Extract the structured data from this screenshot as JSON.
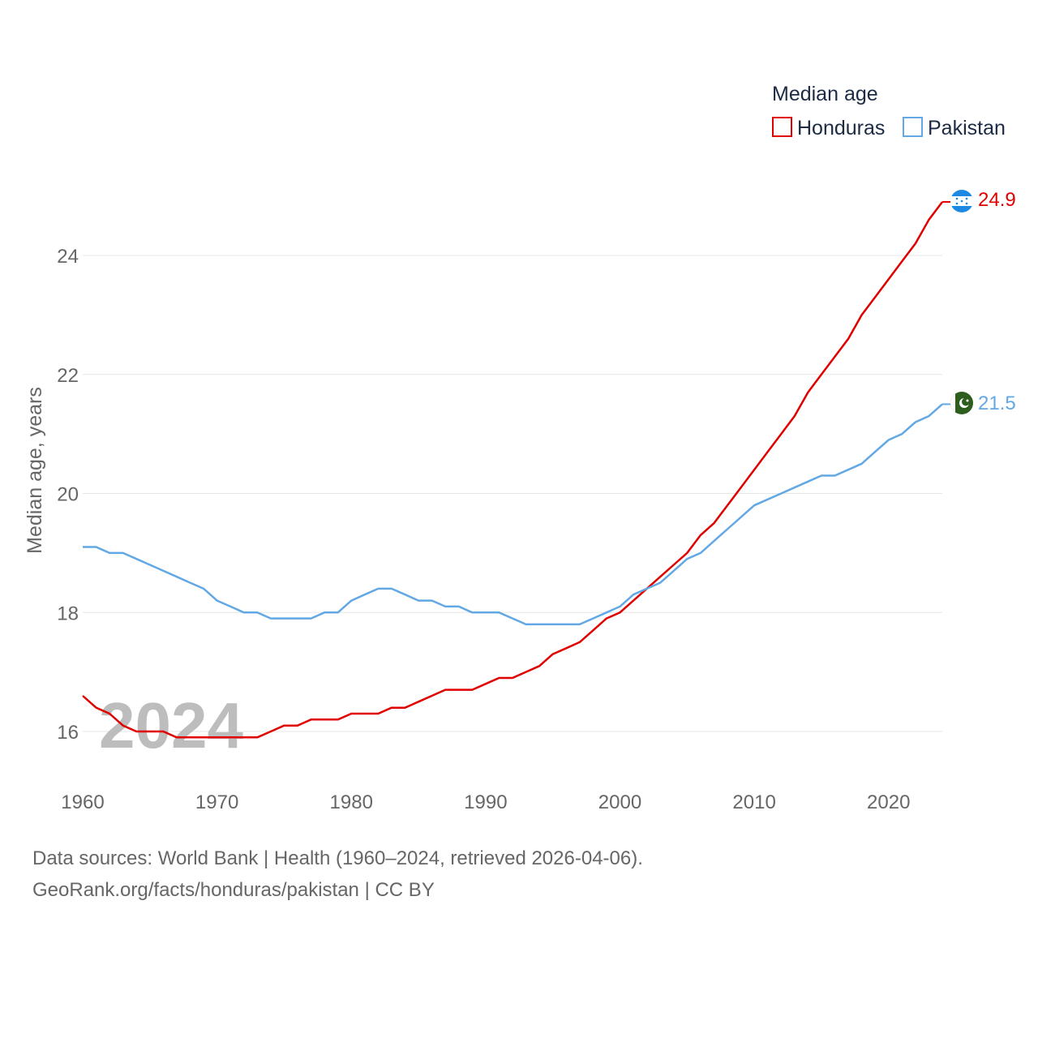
{
  "chart_data": {
    "type": "line",
    "title": "Median age",
    "ylabel": "Median age, years",
    "xlabel": "",
    "xlim": [
      1960,
      2024
    ],
    "ylim": [
      15.4,
      25.9
    ],
    "x_ticks": [
      1960,
      1970,
      1980,
      1990,
      2000,
      2010,
      2020
    ],
    "y_ticks": [
      16,
      18,
      20,
      22,
      24
    ],
    "grid": true,
    "legend_position": "top-right",
    "year_watermark": "2024",
    "x": [
      1960,
      1961,
      1962,
      1963,
      1964,
      1965,
      1966,
      1967,
      1968,
      1969,
      1970,
      1971,
      1972,
      1973,
      1974,
      1975,
      1976,
      1977,
      1978,
      1979,
      1980,
      1981,
      1982,
      1983,
      1984,
      1985,
      1986,
      1987,
      1988,
      1989,
      1990,
      1991,
      1992,
      1993,
      1994,
      1995,
      1996,
      1997,
      1998,
      1999,
      2000,
      2001,
      2002,
      2003,
      2004,
      2005,
      2006,
      2007,
      2008,
      2009,
      2010,
      2011,
      2012,
      2013,
      2014,
      2015,
      2016,
      2017,
      2018,
      2019,
      2020,
      2021,
      2022,
      2023,
      2024
    ],
    "series": [
      {
        "name": "Honduras",
        "color": "#e00000",
        "end_label": "24.9",
        "values": [
          16.6,
          16.4,
          16.3,
          16.1,
          16.0,
          16.0,
          16.0,
          15.9,
          15.9,
          15.9,
          15.9,
          15.9,
          15.9,
          15.9,
          16.0,
          16.1,
          16.1,
          16.2,
          16.2,
          16.2,
          16.3,
          16.3,
          16.3,
          16.4,
          16.4,
          16.5,
          16.6,
          16.7,
          16.7,
          16.7,
          16.8,
          16.9,
          16.9,
          17.0,
          17.1,
          17.3,
          17.4,
          17.5,
          17.7,
          17.9,
          18.0,
          18.2,
          18.4,
          18.6,
          18.8,
          19.0,
          19.3,
          19.5,
          19.8,
          20.1,
          20.4,
          20.7,
          21.0,
          21.3,
          21.7,
          22.0,
          22.3,
          22.6,
          23.0,
          23.3,
          23.6,
          23.9,
          24.2,
          24.6,
          24.9
        ]
      },
      {
        "name": "Pakistan",
        "color": "#62a8e5",
        "end_label": "21.5",
        "values": [
          19.1,
          19.1,
          19.0,
          19.0,
          18.9,
          18.8,
          18.7,
          18.6,
          18.5,
          18.4,
          18.2,
          18.1,
          18.0,
          18.0,
          17.9,
          17.9,
          17.9,
          17.9,
          18.0,
          18.0,
          18.2,
          18.3,
          18.4,
          18.4,
          18.3,
          18.2,
          18.2,
          18.1,
          18.1,
          18.0,
          18.0,
          18.0,
          17.9,
          17.8,
          17.8,
          17.8,
          17.8,
          17.8,
          17.9,
          18.0,
          18.1,
          18.3,
          18.4,
          18.5,
          18.7,
          18.9,
          19.0,
          19.2,
          19.4,
          19.6,
          19.8,
          19.9,
          20.0,
          20.1,
          20.2,
          20.3,
          20.3,
          20.4,
          20.5,
          20.7,
          20.9,
          21.0,
          21.2,
          21.3,
          21.5
        ]
      }
    ]
  },
  "footer": {
    "sources": "Data sources: World Bank | Health (1960–2024, retrieved 2026-04-06).",
    "attribution": "GeoRank.org/facts/honduras/pakistan | CC BY"
  }
}
